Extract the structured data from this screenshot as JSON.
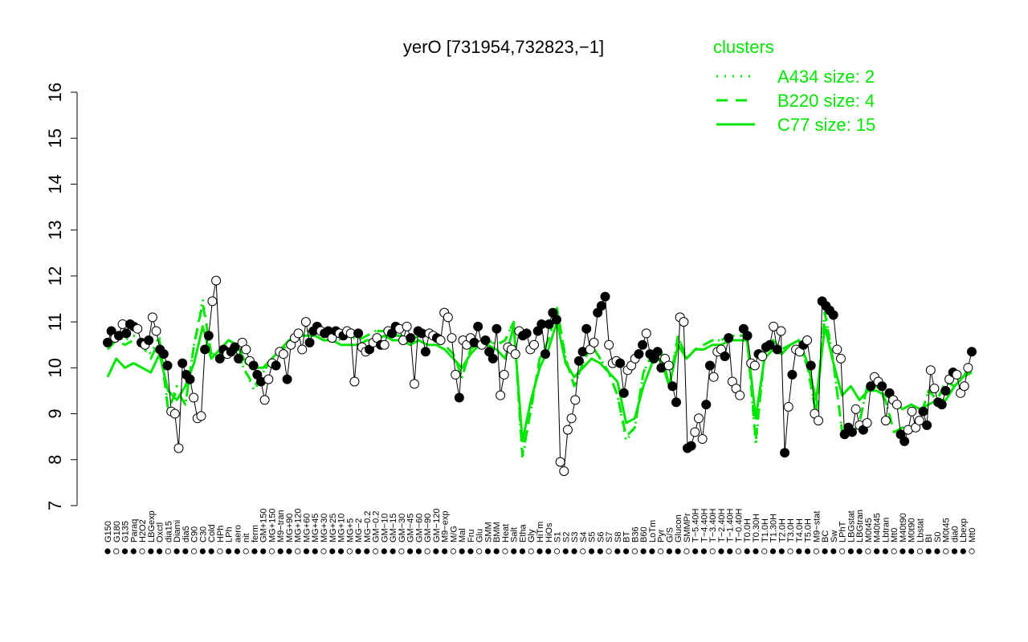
{
  "chart_data": {
    "type": "line",
    "title": "yerO [731954,732823,−1]",
    "xlabel": "",
    "ylabel": "",
    "ylim": [
      7,
      16
    ],
    "yticks": [
      7,
      8,
      9,
      10,
      11,
      12,
      13,
      14,
      15,
      16
    ],
    "colors": {
      "line": "#00e600",
      "marker_edge": "#000000",
      "filled": "#000000",
      "open": "#ffffff",
      "axis": "#000000"
    },
    "x_labels": [
      "G150",
      "G180",
      "G135",
      "Paraq",
      "H2O2",
      "LBGexp",
      "Oxctl",
      "dia15",
      "Diami",
      "dia5",
      "C90",
      "C30",
      "Cold",
      "HPh",
      "LPh",
      "aero",
      "nit",
      "ferm",
      "GM+150",
      "MG+150",
      "M9−tran",
      "MG+90",
      "MG+120",
      "MG+60",
      "MG+45",
      "MG+30",
      "MG+25",
      "MG+10",
      "MG+5",
      "MG−2",
      "MG−0.2",
      "GM−0.2",
      "GM−10",
      "GM−15",
      "GM−30",
      "GM−45",
      "GM−60",
      "GM−90",
      "GM−120",
      "M9−exp",
      "M/G",
      "Mal",
      "Fru",
      "Glu",
      "SMM",
      "BMM",
      "Heat",
      "Salt",
      "Etha",
      "Gly",
      "HiTm",
      "HiOs",
      "S1",
      "S2",
      "S3",
      "S4",
      "S5",
      "S6",
      "S7",
      "S8",
      "BT",
      "B36",
      "B60",
      "LoTm",
      "Pyr",
      "G/S",
      "Glucon",
      "SMMPr",
      "T−5.40H",
      "T−4.40H",
      "T−3.40H",
      "T−2.40H",
      "T−1.40H",
      "T−0.40H",
      "T0.0H",
      "T0.30H",
      "T1.0H",
      "T1.30H",
      "T2.0H",
      "T3.0H",
      "T4.0H",
      "T5.0H",
      "M9−stat",
      "BC",
      "Sw",
      "LPhT",
      "LBGstat",
      "LBGtran",
      "M0t45",
      "M40t45",
      "Lbtran",
      "Mt0",
      "M40t90",
      "M0t90",
      "Lbstat",
      "BI",
      "S0",
      "M0t45",
      "dia0",
      "Lbexp",
      "Mt0"
    ],
    "series": [
      {
        "name": "C77 size: 15",
        "style": "solid",
        "values": [
          9.8,
          10.2,
          10.0,
          10.1,
          10.0,
          9.9,
          10.3,
          9.5,
          9.3,
          9.6,
          10.1,
          10.9,
          10.2,
          10.4,
          10.6,
          10.5,
          10.1,
          10.0,
          10.0,
          10.2,
          10.4,
          10.6,
          10.7,
          10.7,
          10.7,
          10.6,
          10.6,
          10.5,
          10.5,
          10.5,
          10.6,
          10.6,
          10.7,
          10.6,
          10.6,
          10.5,
          10.6,
          10.5,
          10.5,
          10.4,
          10.2,
          10.0,
          10.3,
          10.5,
          10.5,
          10.4,
          10.2,
          10.9,
          8.4,
          9.3,
          10.0,
          10.4,
          11.0,
          10.1,
          9.8,
          10.0,
          10.2,
          10.1,
          9.9,
          9.7,
          8.8,
          8.9,
          9.6,
          10.1,
          10.2,
          9.6,
          10.5,
          10.2,
          10.4,
          10.4,
          10.5,
          10.5,
          10.6,
          10.6,
          10.6,
          8.9,
          10.2,
          10.4,
          10.3,
          10.5,
          10.6,
          10.1,
          9.3,
          10.9,
          10.1,
          9.4,
          9.6,
          9.3,
          9.5,
          9.5,
          9.4,
          9.3,
          9.1,
          9.2,
          9.1,
          9.2,
          9.3,
          9.3,
          9.6,
          9.8,
          9.9
        ]
      },
      {
        "name": "B220 size: 4",
        "style": "dashed",
        "values": [
          10.4,
          10.6,
          10.5,
          10.6,
          10.5,
          10.2,
          10.6,
          9.1,
          9.5,
          9.2,
          10.5,
          11.4,
          10.3,
          10.3,
          10.4,
          10.3,
          9.9,
          9.6,
          9.9,
          10.2,
          10.3,
          10.6,
          10.7,
          10.8,
          10.8,
          10.7,
          10.7,
          10.6,
          10.7,
          10.6,
          10.7,
          10.8,
          10.8,
          10.7,
          10.7,
          10.6,
          10.7,
          10.7,
          10.6,
          10.5,
          10.3,
          9.8,
          10.4,
          10.6,
          10.6,
          10.5,
          10.6,
          11.0,
          8.1,
          9.1,
          10.2,
          10.6,
          11.3,
          10.2,
          9.6,
          10.1,
          10.5,
          10.2,
          9.9,
          9.4,
          8.5,
          8.7,
          9.9,
          10.3,
          10.4,
          9.6,
          10.7,
          10.2,
          10.4,
          10.5,
          10.6,
          10.6,
          10.7,
          10.7,
          10.7,
          8.4,
          10.3,
          10.6,
          10.4,
          10.5,
          10.6,
          10.0,
          9.0,
          11.2,
          10.1,
          8.6,
          8.5,
          8.8,
          9.7,
          9.6,
          9.3,
          8.6,
          8.7,
          8.7,
          8.9,
          9.5,
          9.3,
          9.7,
          9.6,
          9.8,
          10.1
        ]
      },
      {
        "name": "A434 size: 2",
        "style": "dotted",
        "values": [
          10.5,
          10.7,
          10.6,
          10.7,
          10.6,
          10.3,
          10.7,
          9.1,
          9.6,
          9.2,
          10.5,
          11.5,
          10.3,
          10.3,
          10.4,
          10.3,
          9.9,
          9.5,
          9.9,
          10.2,
          10.3,
          10.6,
          10.7,
          10.8,
          10.8,
          10.7,
          10.7,
          10.6,
          10.7,
          10.6,
          10.7,
          10.8,
          10.8,
          10.7,
          10.7,
          10.6,
          10.7,
          10.7,
          10.6,
          10.5,
          10.3,
          9.8,
          10.4,
          10.6,
          10.6,
          10.5,
          10.6,
          11.0,
          8.0,
          9.1,
          10.2,
          10.6,
          11.3,
          10.2,
          9.6,
          10.1,
          10.5,
          10.2,
          9.9,
          9.4,
          8.4,
          8.7,
          9.9,
          10.3,
          10.4,
          9.6,
          10.7,
          10.2,
          10.4,
          10.5,
          10.6,
          10.6,
          10.7,
          10.7,
          10.7,
          8.3,
          10.3,
          10.6,
          10.4,
          10.5,
          10.6,
          10.0,
          9.0,
          11.3,
          10.1,
          8.6,
          8.5,
          8.8,
          9.7,
          9.6,
          9.3,
          8.6,
          8.7,
          8.7,
          8.9,
          9.5,
          9.3,
          9.7,
          9.6,
          9.8,
          10.1
        ]
      }
    ],
    "points": [
      {
        "v": 10.55,
        "f": 1
      },
      {
        "v": 10.8,
        "f": 1
      },
      {
        "v": 10.65,
        "f": 0
      },
      {
        "v": 10.7,
        "f": 1
      },
      {
        "v": 10.95,
        "f": 0
      },
      {
        "v": 10.75,
        "f": 1
      },
      {
        "v": 10.95,
        "f": 1
      },
      {
        "v": 10.9,
        "f": 1
      },
      {
        "v": 10.85,
        "f": 0
      },
      {
        "v": 10.55,
        "f": 1
      },
      {
        "v": 10.5,
        "f": 0
      },
      {
        "v": 10.6,
        "f": 1
      },
      {
        "v": 11.1,
        "f": 0
      },
      {
        "v": 10.8,
        "f": 0
      },
      {
        "v": 10.4,
        "f": 1
      },
      {
        "v": 10.3,
        "f": 1
      },
      {
        "v": 10.05,
        "f": 1
      },
      {
        "v": 9.05,
        "f": 0
      },
      {
        "v": 9.0,
        "f": 0
      },
      {
        "v": 8.25,
        "f": 0
      },
      {
        "v": 10.1,
        "f": 1
      },
      {
        "v": 9.85,
        "f": 1
      },
      {
        "v": 9.75,
        "f": 1
      },
      {
        "v": 9.35,
        "f": 0
      },
      {
        "v": 8.9,
        "f": 0
      },
      {
        "v": 8.95,
        "f": 0
      },
      {
        "v": 10.4,
        "f": 1
      },
      {
        "v": 10.7,
        "f": 1
      },
      {
        "v": 11.45,
        "f": 0
      },
      {
        "v": 11.9,
        "f": 0
      },
      {
        "v": 10.2,
        "f": 1
      },
      {
        "v": 10.4,
        "f": 1
      },
      {
        "v": 10.3,
        "f": 0
      },
      {
        "v": 10.35,
        "f": 1
      },
      {
        "v": 10.45,
        "f": 1
      },
      {
        "v": 10.2,
        "f": 1
      },
      {
        "v": 10.55,
        "f": 0
      },
      {
        "v": 10.4,
        "f": 0
      },
      {
        "v": 10.15,
        "f": 0
      },
      {
        "v": 10.05,
        "f": 1
      },
      {
        "v": 9.85,
        "f": 1
      },
      {
        "v": 9.7,
        "f": 1
      },
      {
        "v": 9.3,
        "f": 0
      },
      {
        "v": 9.75,
        "f": 0
      },
      {
        "v": 10.1,
        "f": 0
      },
      {
        "v": 10.05,
        "f": 1
      },
      {
        "v": 10.35,
        "f": 0
      },
      {
        "v": 10.3,
        "f": 0
      },
      {
        "v": 9.75,
        "f": 1
      },
      {
        "v": 10.5,
        "f": 0
      },
      {
        "v": 10.65,
        "f": 0
      },
      {
        "v": 10.75,
        "f": 0
      },
      {
        "v": 10.4,
        "f": 0
      },
      {
        "v": 11.0,
        "f": 0
      },
      {
        "v": 10.55,
        "f": 1
      },
      {
        "v": 10.8,
        "f": 1
      },
      {
        "v": 10.9,
        "f": 1
      },
      {
        "v": 10.8,
        "f": 0
      },
      {
        "v": 10.75,
        "f": 1
      },
      {
        "v": 10.8,
        "f": 1
      },
      {
        "v": 10.65,
        "f": 0
      },
      {
        "v": 10.8,
        "f": 1
      },
      {
        "v": 10.75,
        "f": 0
      },
      {
        "v": 10.7,
        "f": 1
      },
      {
        "v": 10.8,
        "f": 0
      },
      {
        "v": 10.75,
        "f": 0
      },
      {
        "v": 9.7,
        "f": 0
      },
      {
        "v": 10.75,
        "f": 1
      },
      {
        "v": 10.45,
        "f": 0
      },
      {
        "v": 10.35,
        "f": 0
      },
      {
        "v": 10.4,
        "f": 1
      },
      {
        "v": 10.55,
        "f": 0
      },
      {
        "v": 10.65,
        "f": 0
      },
      {
        "v": 10.5,
        "f": 1
      },
      {
        "v": 10.5,
        "f": 0
      },
      {
        "v": 10.8,
        "f": 0
      },
      {
        "v": 10.75,
        "f": 1
      },
      {
        "v": 10.9,
        "f": 1
      },
      {
        "v": 10.85,
        "f": 0
      },
      {
        "v": 10.6,
        "f": 0
      },
      {
        "v": 10.9,
        "f": 0
      },
      {
        "v": 10.65,
        "f": 1
      },
      {
        "v": 9.65,
        "f": 0
      },
      {
        "v": 10.8,
        "f": 1
      },
      {
        "v": 10.75,
        "f": 1
      },
      {
        "v": 10.35,
        "f": 1
      },
      {
        "v": 10.75,
        "f": 0
      },
      {
        "v": 10.7,
        "f": 0
      },
      {
        "v": 10.65,
        "f": 1
      },
      {
        "v": 10.6,
        "f": 0
      },
      {
        "v": 11.2,
        "f": 0
      },
      {
        "v": 11.1,
        "f": 0
      },
      {
        "v": 10.65,
        "f": 0
      },
      {
        "v": 9.85,
        "f": 0
      },
      {
        "v": 9.35,
        "f": 1
      },
      {
        "v": 10.6,
        "f": 0
      },
      {
        "v": 10.5,
        "f": 0
      },
      {
        "v": 10.65,
        "f": 0
      },
      {
        "v": 10.55,
        "f": 1
      },
      {
        "v": 10.9,
        "f": 1
      },
      {
        "v": 10.5,
        "f": 0
      },
      {
        "v": 10.6,
        "f": 1
      },
      {
        "v": 10.35,
        "f": 1
      },
      {
        "v": 10.2,
        "f": 1
      },
      {
        "v": 10.85,
        "f": 1
      },
      {
        "v": 9.4,
        "f": 0
      },
      {
        "v": 9.85,
        "f": 0
      },
      {
        "v": 10.45,
        "f": 0
      },
      {
        "v": 10.4,
        "f": 0
      },
      {
        "v": 10.3,
        "f": 0
      },
      {
        "v": 10.8,
        "f": 0
      },
      {
        "v": 10.7,
        "f": 1
      },
      {
        "v": 10.75,
        "f": 1
      },
      {
        "v": 10.4,
        "f": 0
      },
      {
        "v": 10.5,
        "f": 0
      },
      {
        "v": 10.8,
        "f": 1
      },
      {
        "v": 10.95,
        "f": 1
      },
      {
        "v": 10.3,
        "f": 1
      },
      {
        "v": 10.95,
        "f": 1
      },
      {
        "v": 11.2,
        "f": 1
      },
      {
        "v": 11.05,
        "f": 1
      },
      {
        "v": 7.95,
        "f": 0
      },
      {
        "v": 7.75,
        "f": 0
      },
      {
        "v": 8.65,
        "f": 0
      },
      {
        "v": 8.9,
        "f": 0
      },
      {
        "v": 9.3,
        "f": 0
      },
      {
        "v": 10.15,
        "f": 1
      },
      {
        "v": 10.35,
        "f": 1
      },
      {
        "v": 10.85,
        "f": 1
      },
      {
        "v": 10.4,
        "f": 0
      },
      {
        "v": 10.55,
        "f": 0
      },
      {
        "v": 11.2,
        "f": 1
      },
      {
        "v": 11.35,
        "f": 1
      },
      {
        "v": 11.55,
        "f": 1
      },
      {
        "v": 10.5,
        "f": 0
      },
      {
        "v": 10.1,
        "f": 0
      },
      {
        "v": 10.15,
        "f": 0
      },
      {
        "v": 10.1,
        "f": 1
      },
      {
        "v": 9.45,
        "f": 1
      },
      {
        "v": 9.95,
        "f": 0
      },
      {
        "v": 10.05,
        "f": 0
      },
      {
        "v": 10.2,
        "f": 0
      },
      {
        "v": 10.3,
        "f": 1
      },
      {
        "v": 10.5,
        "f": 1
      },
      {
        "v": 10.75,
        "f": 0
      },
      {
        "v": 10.3,
        "f": 1
      },
      {
        "v": 10.2,
        "f": 1
      },
      {
        "v": 10.35,
        "f": 1
      },
      {
        "v": 10.0,
        "f": 1
      },
      {
        "v": 10.2,
        "f": 0
      },
      {
        "v": 10.05,
        "f": 0
      },
      {
        "v": 9.6,
        "f": 1
      },
      {
        "v": 9.25,
        "f": 1
      },
      {
        "v": 11.1,
        "f": 0
      },
      {
        "v": 11.0,
        "f": 0
      },
      {
        "v": 8.25,
        "f": 1
      },
      {
        "v": 8.3,
        "f": 1
      },
      {
        "v": 8.6,
        "f": 0
      },
      {
        "v": 8.9,
        "f": 0
      },
      {
        "v": 8.45,
        "f": 0
      },
      {
        "v": 9.2,
        "f": 1
      },
      {
        "v": 10.05,
        "f": 1
      },
      {
        "v": 9.8,
        "f": 0
      },
      {
        "v": 10.35,
        "f": 0
      },
      {
        "v": 10.4,
        "f": 0
      },
      {
        "v": 10.25,
        "f": 1
      },
      {
        "v": 10.65,
        "f": 1
      },
      {
        "v": 9.7,
        "f": 0
      },
      {
        "v": 9.55,
        "f": 0
      },
      {
        "v": 9.4,
        "f": 0
      },
      {
        "v": 10.85,
        "f": 1
      },
      {
        "v": 10.7,
        "f": 1
      },
      {
        "v": 10.1,
        "f": 0
      },
      {
        "v": 10.05,
        "f": 0
      },
      {
        "v": 10.3,
        "f": 1
      },
      {
        "v": 10.25,
        "f": 0
      },
      {
        "v": 10.45,
        "f": 1
      },
      {
        "v": 10.5,
        "f": 1
      },
      {
        "v": 10.9,
        "f": 0
      },
      {
        "v": 10.4,
        "f": 1
      },
      {
        "v": 10.8,
        "f": 0
      },
      {
        "v": 8.15,
        "f": 1
      },
      {
        "v": 9.15,
        "f": 0
      },
      {
        "v": 9.85,
        "f": 1
      },
      {
        "v": 10.4,
        "f": 0
      },
      {
        "v": 10.35,
        "f": 0
      },
      {
        "v": 10.5,
        "f": 1
      },
      {
        "v": 10.6,
        "f": 0
      },
      {
        "v": 10.05,
        "f": 1
      },
      {
        "v": 9.0,
        "f": 0
      },
      {
        "v": 8.85,
        "f": 0
      },
      {
        "v": 11.45,
        "f": 1
      },
      {
        "v": 11.35,
        "f": 1
      },
      {
        "v": 11.25,
        "f": 1
      },
      {
        "v": 11.15,
        "f": 1
      },
      {
        "v": 10.4,
        "f": 0
      },
      {
        "v": 10.2,
        "f": 0
      },
      {
        "v": 8.55,
        "f": 1
      },
      {
        "v": 8.7,
        "f": 1
      },
      {
        "v": 8.6,
        "f": 1
      },
      {
        "v": 9.1,
        "f": 0
      },
      {
        "v": 8.75,
        "f": 0
      },
      {
        "v": 8.65,
        "f": 1
      },
      {
        "v": 8.8,
        "f": 0
      },
      {
        "v": 9.6,
        "f": 1
      },
      {
        "v": 9.8,
        "f": 0
      },
      {
        "v": 9.7,
        "f": 0
      },
      {
        "v": 9.6,
        "f": 1
      },
      {
        "v": 8.85,
        "f": 0
      },
      {
        "v": 9.45,
        "f": 1
      },
      {
        "v": 9.3,
        "f": 0
      },
      {
        "v": 9.2,
        "f": 0
      },
      {
        "v": 8.55,
        "f": 1
      },
      {
        "v": 8.4,
        "f": 1
      },
      {
        "v": 8.65,
        "f": 0
      },
      {
        "v": 9.05,
        "f": 0
      },
      {
        "v": 8.7,
        "f": 0
      },
      {
        "v": 8.85,
        "f": 0
      },
      {
        "v": 9.05,
        "f": 1
      },
      {
        "v": 8.75,
        "f": 1
      },
      {
        "v": 9.95,
        "f": 0
      },
      {
        "v": 9.55,
        "f": 0
      },
      {
        "v": 9.25,
        "f": 1
      },
      {
        "v": 9.2,
        "f": 1
      },
      {
        "v": 9.5,
        "f": 1
      },
      {
        "v": 9.75,
        "f": 0
      },
      {
        "v": 9.9,
        "f": 1
      },
      {
        "v": 9.85,
        "f": 0
      },
      {
        "v": 9.45,
        "f": 0
      },
      {
        "v": 9.6,
        "f": 0
      },
      {
        "v": 10.0,
        "f": 0
      },
      {
        "v": 10.35,
        "f": 1
      }
    ],
    "legend": {
      "title": "clusters",
      "position": "top-right",
      "entries": [
        {
          "label": "A434 size: 2",
          "style": "dotted"
        },
        {
          "label": "B220 size: 4",
          "style": "dashed"
        },
        {
          "label": "C77 size: 15",
          "style": "solid"
        }
      ]
    }
  }
}
